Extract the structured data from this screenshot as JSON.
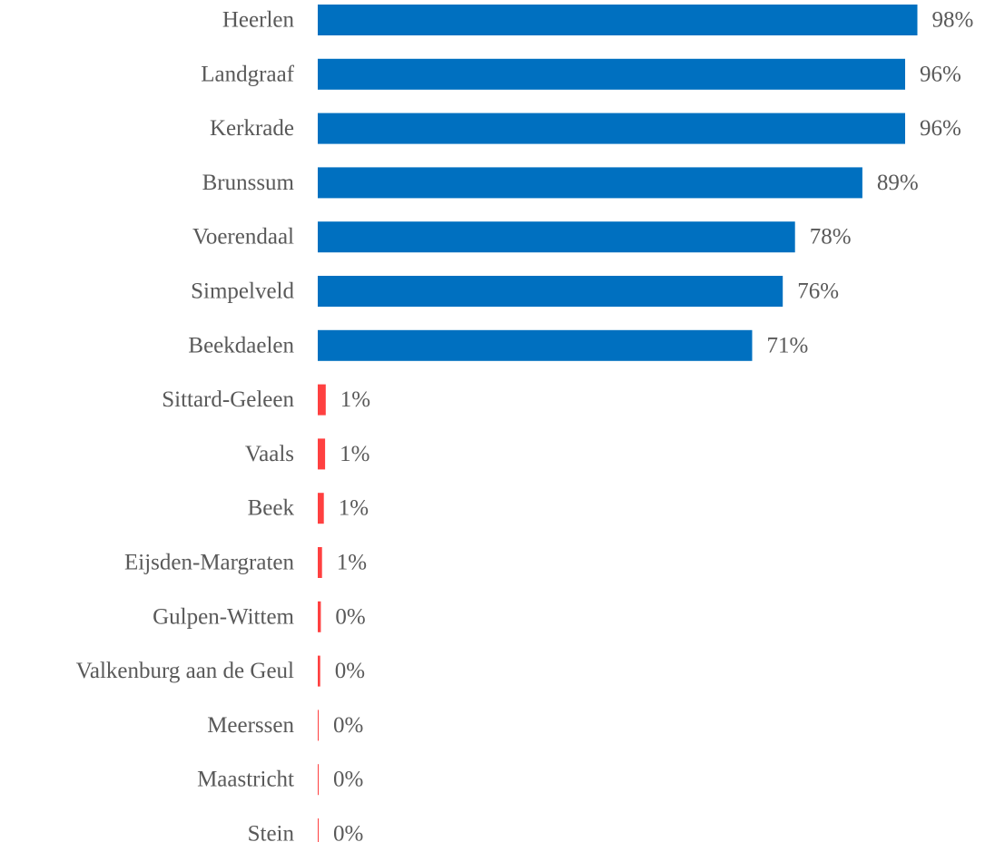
{
  "chart_data": {
    "type": "bar",
    "orientation": "horizontal",
    "categories": [
      "Heerlen",
      "Landgraaf",
      "Kerkrade",
      "Brunssum",
      "Voerendaal",
      "Simpelveld",
      "Beekdaelen",
      "Sittard-Geleen",
      "Vaals",
      "Beek",
      "Eijsden-Margraten",
      "Gulpen-Wittem",
      "Valkenburg aan de Geul",
      "Meerssen",
      "Maastricht",
      "Stein"
    ],
    "values": [
      98,
      96,
      96,
      89,
      78,
      76,
      71,
      1.3,
      1.2,
      1.0,
      0.7,
      0.5,
      0.4,
      0.15,
      0.15,
      0.15
    ],
    "value_labels": [
      "98%",
      "96%",
      "96%",
      "89%",
      "78%",
      "76%",
      "71%",
      "1%",
      "1%",
      "1%",
      "1%",
      "0%",
      "0%",
      "0%",
      "0%",
      "0%"
    ],
    "xlim": [
      0,
      100
    ],
    "grid": false,
    "colors": {
      "high": "#0070c0",
      "low": "#ff4040"
    },
    "bar_colors": [
      "high",
      "high",
      "high",
      "high",
      "high",
      "high",
      "high",
      "low",
      "low",
      "low",
      "low",
      "low",
      "low",
      "low",
      "low",
      "low"
    ]
  }
}
